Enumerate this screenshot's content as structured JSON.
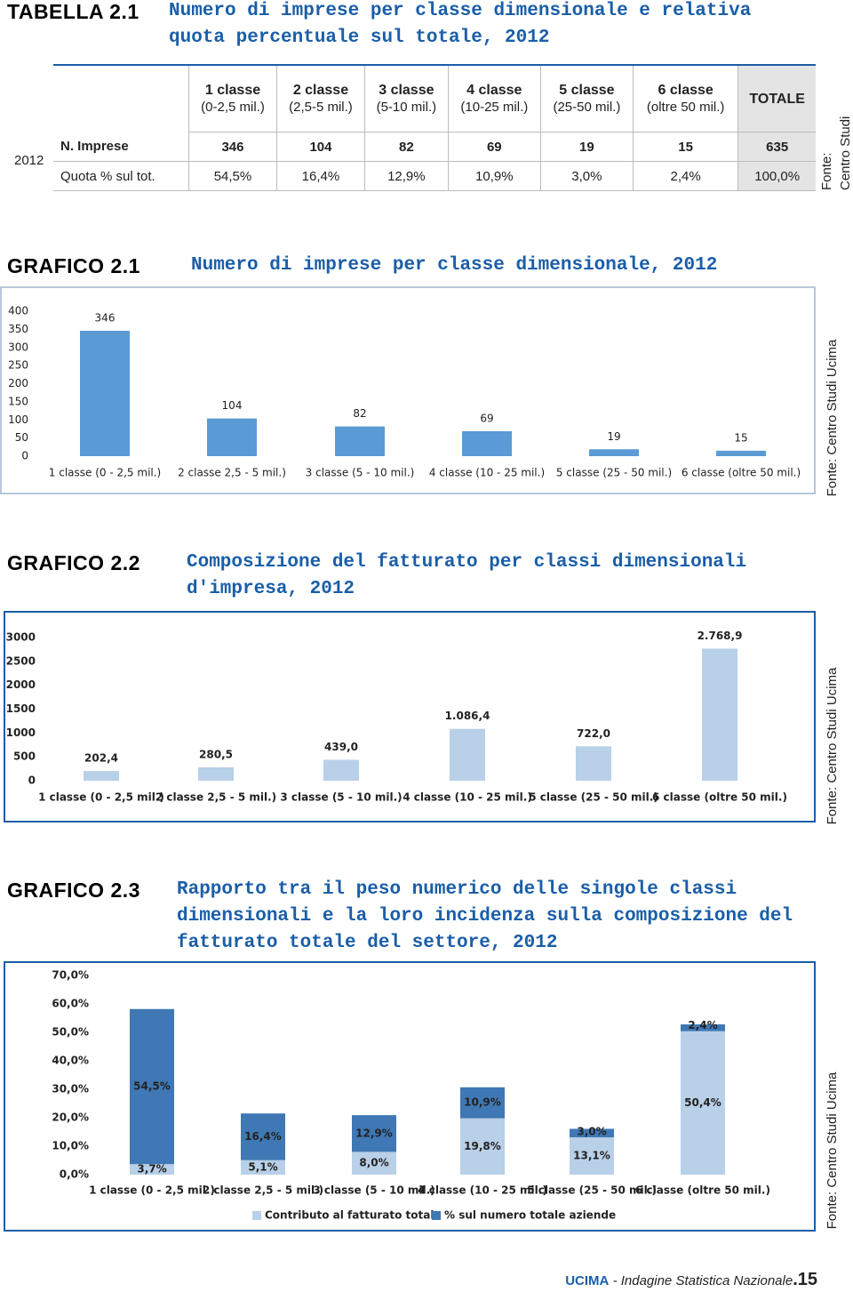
{
  "table": {
    "label": "TABELLA 2.1",
    "title": "Numero di imprese per classe dimensionale e relativa quota percentuale sul totale, 2012",
    "headers": [
      {
        "name": "1 classe",
        "range": "(0-2,5 mil.)"
      },
      {
        "name": "2 classe",
        "range": "(2,5-5 mil.)"
      },
      {
        "name": "3 classe",
        "range": "(5-10 mil.)"
      },
      {
        "name": "4 classe",
        "range": "(10-25 mil.)"
      },
      {
        "name": "5 classe",
        "range": "(25-50 mil.)"
      },
      {
        "name": "6 classe",
        "range": "(oltre 50 mil.)"
      },
      {
        "name": "TOTALE"
      }
    ],
    "year": "2012",
    "rows": [
      [
        "N. Imprese",
        "346",
        "104",
        "82",
        "69",
        "19",
        "15",
        "635"
      ],
      [
        "Quota % sul tot.",
        "54,5%",
        "16,4%",
        "12,9%",
        "10,9%",
        "3,0%",
        "2,4%",
        "100,0%"
      ]
    ],
    "source_lines": [
      "Fonte:",
      "Centro Studi Ucima"
    ]
  },
  "chart_data": [
    {
      "type": "bar",
      "label": "GRAFICO 2.1",
      "title": "Numero di imprese per classe dimensionale, 2012",
      "categories": [
        "1 classe (0 - 2,5 mil.)",
        "2 classe 2,5 - 5 mil.)",
        "3 classe (5 - 10 mil.)",
        "4 classe (10 - 25 mil.)",
        "5 classe (25 - 50 mil.)",
        "6 classe (oltre 50 mil.)"
      ],
      "values": [
        346,
        104,
        82,
        69,
        19,
        15
      ],
      "color": "#5b9bd5",
      "ylim": [
        0,
        400
      ],
      "yticks": [
        0,
        50,
        100,
        150,
        200,
        250,
        300,
        350,
        400
      ],
      "source": "Fonte: Centro Studi Ucima"
    },
    {
      "type": "bar",
      "label": "GRAFICO 2.2",
      "title": "Composizione del fatturato per classi dimensionali d'impresa, 2012",
      "categories": [
        "1 classe (0 - 2,5 mil.)",
        "2 classe 2,5 - 5 mil.)",
        "3 classe (5 - 10 mil.)",
        "4 classe (10 - 25 mil.)",
        "5 classe (25 - 50 mil.)",
        "6 classe (oltre 50 mil.)"
      ],
      "values": [
        202.4,
        280.5,
        439.0,
        1086.4,
        722.0,
        2768.9
      ],
      "value_labels": [
        "202,4",
        "280,5",
        "439,0",
        "1.086,4",
        "722,0",
        "2.768,9"
      ],
      "color": "#b8d0e8",
      "ylim": [
        0,
        3000
      ],
      "yticks": [
        0,
        500,
        1000,
        1500,
        2000,
        2500,
        3000
      ],
      "source": "Fonte: Centro Studi Ucima"
    },
    {
      "type": "stacked_bar",
      "label": "GRAFICO 2.3",
      "title": "Rapporto tra il peso numerico delle singole classi dimensionali e la loro incidenza sulla composizione del fatturato totale del settore, 2012",
      "categories": [
        "1 classe (0 - 2,5 mil.)",
        "2 classe 2,5 - 5 mil.)",
        "3 classe (5 - 10 mil.)",
        "4 classe (10 - 25 mil.)",
        "5 classe (25 - 50 mil.)",
        "6 classe (oltre 50 mil.)"
      ],
      "series": [
        {
          "name": "Contributo al fatturato totale",
          "color": "#b8d0e8",
          "values": [
            3.7,
            5.1,
            8.0,
            19.8,
            13.1,
            50.4
          ],
          "value_labels": [
            "3,7%",
            "5,1%",
            "8,0%",
            "19,8%",
            "13,1%",
            "50,4%"
          ]
        },
        {
          "name": "% sul numero totale aziende",
          "color": "#3f78b4",
          "values": [
            54.5,
            16.4,
            12.9,
            10.9,
            3.0,
            2.4
          ],
          "value_labels": [
            "54,5%",
            "16,4%",
            "12,9%",
            "10,9%",
            "3,0%",
            "2,4%"
          ]
        }
      ],
      "ylim": [
        0,
        70
      ],
      "yticks": [
        {
          "value": 0,
          "label": "0,0%"
        },
        {
          "value": 10,
          "label": "10,0%"
        },
        {
          "value": 20,
          "label": "20,0%"
        },
        {
          "value": 30,
          "label": "30,0%"
        },
        {
          "value": 40,
          "label": "40,0%"
        },
        {
          "value": 50,
          "label": "50,0%"
        },
        {
          "value": 60,
          "label": "60,0%"
        },
        {
          "value": 70,
          "label": "70,0%"
        }
      ],
      "legend": "bottom",
      "source": "Fonte: Centro Studi Ucima"
    }
  ],
  "footer": {
    "brand": "UCIMA",
    "text": "- Indagine Statistica Nazionale",
    "page": ".15"
  }
}
